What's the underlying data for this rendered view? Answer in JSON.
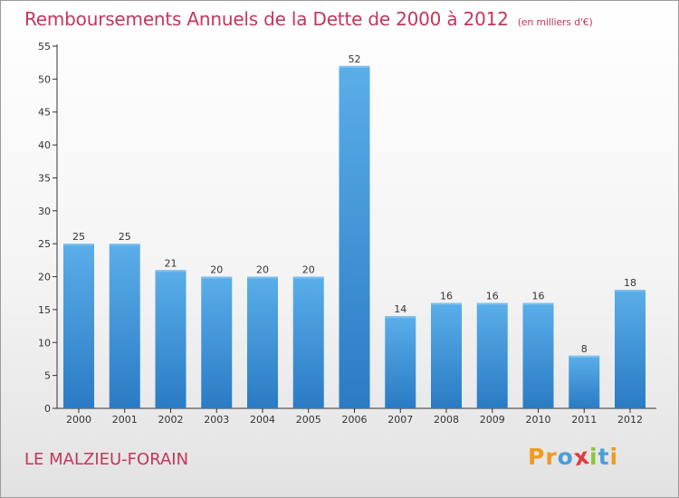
{
  "header": {
    "title": "Remboursements Annuels de la Dette de 2000 à 2012",
    "unit": "(en milliers d'€)"
  },
  "footer": {
    "commune": "LE MALZIEU-FORAIN",
    "logo": "Proxiti"
  },
  "colors": {
    "title": "#c4365b",
    "bar_top": "#5aaee9",
    "bar_bottom": "#2a7bc4",
    "logo_letters": [
      "#f29a1f",
      "#f29a1f",
      "#4a9fd8",
      "#e23b3b",
      "#8cc43a",
      "#4a9fd8",
      "#f29a1f"
    ]
  },
  "chart_data": {
    "type": "bar",
    "title": "Remboursements Annuels de la Dette de 2000 à 2012",
    "subtitle": "(en milliers d'€)",
    "categories": [
      "2000",
      "2001",
      "2002",
      "2003",
      "2004",
      "2005",
      "2006",
      "2007",
      "2008",
      "2009",
      "2010",
      "2011",
      "2012"
    ],
    "values": [
      25,
      25,
      21,
      20,
      20,
      20,
      52,
      14,
      16,
      16,
      16,
      8,
      18
    ],
    "data_labels": [
      "25",
      "25",
      "21",
      "20",
      "20",
      "20",
      "52",
      "14",
      "16",
      "16",
      "16",
      "8",
      "18"
    ],
    "xlabel": "",
    "ylabel": "",
    "ylim": [
      0,
      55
    ],
    "yticks": [
      "0",
      "5",
      "10",
      "15",
      "20",
      "25",
      "30",
      "35",
      "40",
      "45",
      "50",
      "55"
    ],
    "grid": false,
    "legend": "none"
  }
}
